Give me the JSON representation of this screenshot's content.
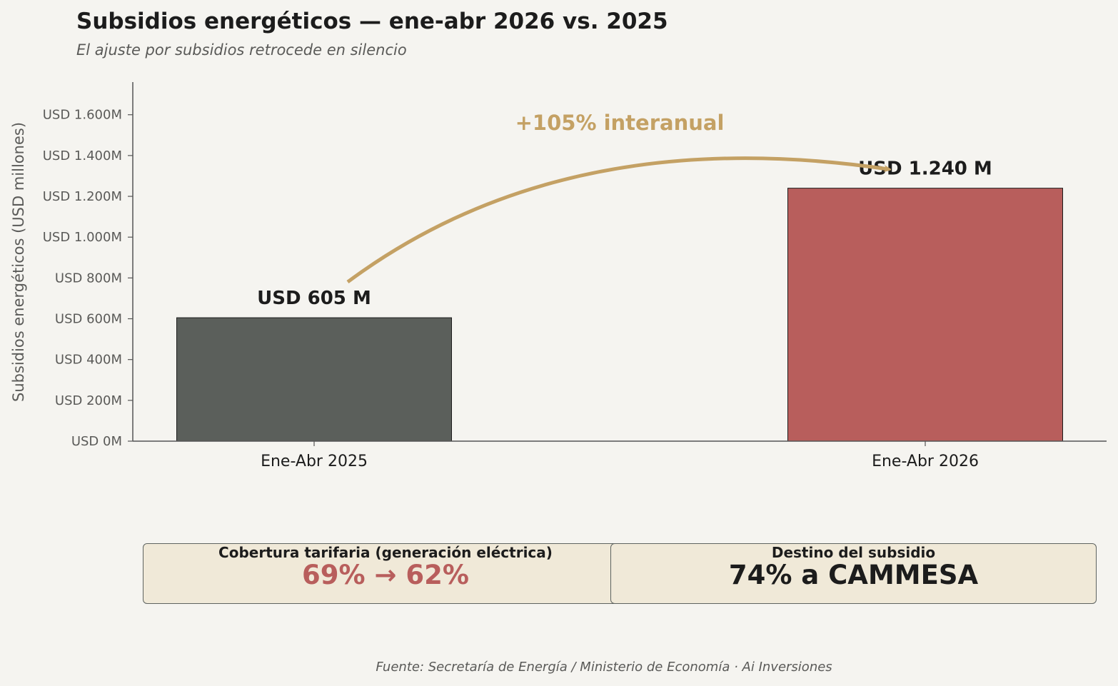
{
  "header": {
    "title": "Subsidios energéticos — ene-abr 2026 vs. 2025",
    "subtitle": "El ajuste por subsidios retrocede en silencio"
  },
  "chart_data": {
    "type": "bar",
    "categories": [
      "Ene-Abr 2025",
      "Ene-Abr 2026"
    ],
    "values": [
      605,
      1240
    ],
    "value_labels": [
      "USD 605 M",
      "USD 1.240 M"
    ],
    "colors": [
      "#5b5f5b",
      "#b85e5c"
    ],
    "ylabel": "Subsidios energéticos (USD millones)",
    "ylim": [
      0,
      1760
    ],
    "yticks": [
      0,
      200,
      400,
      600,
      800,
      1000,
      1200,
      1400,
      1600
    ],
    "ytick_labels": [
      "USD 0M",
      "USD 200M",
      "USD 400M",
      "USD 600M",
      "USD 800M",
      "USD 1.000M",
      "USD 1.200M",
      "USD 1.400M",
      "USD 1.600M"
    ],
    "annotation": {
      "text": "+105% interanual",
      "color": "#c4a164"
    },
    "grid": false
  },
  "cards": [
    {
      "title": "Cobertura tarifaria (generación eléctrica)",
      "value": "69%  →  62%",
      "value_color": "#b85e5c"
    },
    {
      "title": "Destino del subsidio",
      "value": "74% a CAMMESA",
      "value_color": "#1c1c1c"
    }
  ],
  "source": "Fuente: Secretaría de Energía / Ministerio de Economía · Ai Inversiones"
}
